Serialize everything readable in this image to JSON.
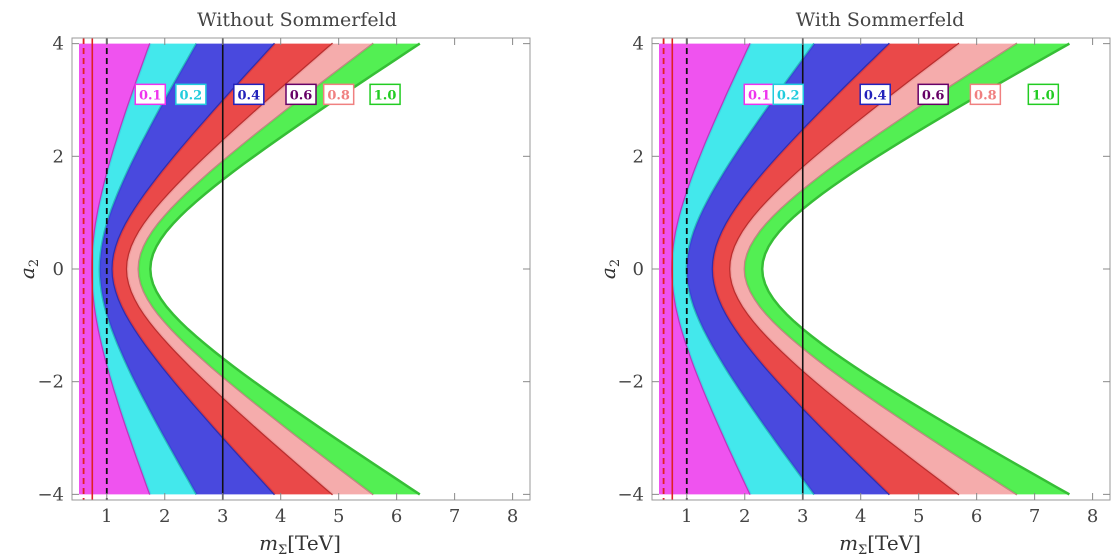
{
  "chart_data": [
    {
      "type": "area",
      "title": "Without Sommerfeld",
      "xlabel_main": "m",
      "xlabel_sub": "Σ",
      "xlabel_unit": "[TeV]",
      "ylabel_main": "a",
      "ylabel_sub": "2",
      "xlim": [
        0.4,
        8.3
      ],
      "ylim": [
        -4.1,
        4.1
      ],
      "xticks": [
        1,
        2,
        3,
        4,
        5,
        6,
        7,
        8
      ],
      "yticks": [
        4,
        2,
        0,
        -2,
        -4
      ],
      "ytick_labels": [
        "4",
        "2",
        "0",
        "−2",
        "−4"
      ],
      "grid": false,
      "bands": [
        {
          "label": "0.1",
          "color": "#ee44ee",
          "left_edge": [
            [
              0.52,
              4
            ],
            [
              0.52,
              -4
            ]
          ],
          "right_edge": [
            [
              1.75,
              4
            ],
            [
              0.75,
              0
            ],
            [
              1.75,
              -4
            ]
          ]
        },
        {
          "label": "0.2",
          "color": "#33e6ea",
          "left_edge": [
            [
              1.75,
              4
            ],
            [
              0.75,
              0
            ],
            [
              1.75,
              -4
            ]
          ],
          "right_edge": [
            [
              2.55,
              4
            ],
            [
              0.88,
              0
            ],
            [
              2.55,
              -4
            ]
          ]
        },
        {
          "label": "0.4",
          "color": "#3a3adb",
          "left_edge": [
            [
              2.55,
              4
            ],
            [
              0.88,
              0
            ],
            [
              2.55,
              -4
            ]
          ],
          "right_edge": [
            [
              3.9,
              4
            ],
            [
              1.1,
              0
            ],
            [
              3.9,
              -4
            ]
          ]
        },
        {
          "label": "0.6",
          "color": "#e83a3a",
          "left_edge": [
            [
              3.9,
              4
            ],
            [
              1.1,
              0
            ],
            [
              3.9,
              -4
            ]
          ],
          "right_edge": [
            [
              4.9,
              4
            ],
            [
              1.35,
              0
            ],
            [
              4.9,
              -4
            ]
          ]
        },
        {
          "label": "0.8",
          "color": "#f4a5a5",
          "left_edge": [
            [
              4.9,
              4
            ],
            [
              1.35,
              0
            ],
            [
              4.9,
              -4
            ]
          ],
          "right_edge": [
            [
              5.6,
              4
            ],
            [
              1.55,
              0
            ],
            [
              5.6,
              -4
            ]
          ]
        },
        {
          "label": "1.0",
          "color": "#44ee44",
          "left_edge": [
            [
              5.6,
              4
            ],
            [
              1.55,
              0
            ],
            [
              5.6,
              -4
            ]
          ],
          "right_edge": [
            [
              6.4,
              4
            ],
            [
              1.75,
              0
            ],
            [
              6.4,
              -4
            ]
          ]
        }
      ],
      "band_labels": [
        {
          "text": "0.1",
          "x": 1.75,
          "y": 3.1,
          "color": "#ee33ee"
        },
        {
          "text": "0.2",
          "x": 2.45,
          "y": 3.1,
          "color": "#22ccdd"
        },
        {
          "text": "0.4",
          "x": 3.45,
          "y": 3.1,
          "color": "#2222bb"
        },
        {
          "text": "0.6",
          "x": 4.35,
          "y": 3.1,
          "color": "#660066"
        },
        {
          "text": "0.8",
          "x": 5.0,
          "y": 3.1,
          "color": "#f08080"
        },
        {
          "text": "1.0",
          "x": 5.8,
          "y": 3.1,
          "color": "#22cc22"
        }
      ],
      "vertical_lines": [
        {
          "x": 0.6,
          "color": "#dd2222",
          "style": "dashed"
        },
        {
          "x": 0.75,
          "color": "#dd2222",
          "style": "solid"
        },
        {
          "x": 1.0,
          "color": "#111111",
          "style": "dashed"
        },
        {
          "x": 3.0,
          "color": "#111111",
          "style": "solid"
        }
      ]
    },
    {
      "type": "area",
      "title": "With Sommerfeld",
      "xlabel_main": "m",
      "xlabel_sub": "Σ",
      "xlabel_unit": "[TeV]",
      "ylabel_main": "a",
      "ylabel_sub": "2",
      "xlim": [
        0.4,
        8.3
      ],
      "ylim": [
        -4.1,
        4.1
      ],
      "xticks": [
        1,
        2,
        3,
        4,
        5,
        6,
        7,
        8
      ],
      "yticks": [
        4,
        2,
        0,
        -2,
        -4
      ],
      "ytick_labels": [
        "4",
        "2",
        "0",
        "−2",
        "−4"
      ],
      "grid": false,
      "bands": [
        {
          "label": "0.1",
          "color": "#ee44ee",
          "left_edge": [
            [
              0.52,
              4
            ],
            [
              0.52,
              -4
            ]
          ],
          "right_edge": [
            [
              2.1,
              4
            ],
            [
              0.75,
              0
            ],
            [
              2.1,
              -4
            ]
          ]
        },
        {
          "label": "0.2",
          "color": "#33e6ea",
          "left_edge": [
            [
              2.1,
              4
            ],
            [
              0.75,
              0
            ],
            [
              2.1,
              -4
            ]
          ],
          "right_edge": [
            [
              3.2,
              4
            ],
            [
              1.0,
              0
            ],
            [
              3.2,
              -4
            ]
          ]
        },
        {
          "label": "0.4",
          "color": "#3a3adb",
          "left_edge": [
            [
              3.2,
              4
            ],
            [
              1.0,
              0
            ],
            [
              3.2,
              -4
            ]
          ],
          "right_edge": [
            [
              4.5,
              4
            ],
            [
              1.45,
              0
            ],
            [
              4.5,
              -4
            ]
          ]
        },
        {
          "label": "0.6",
          "color": "#e83a3a",
          "left_edge": [
            [
              4.5,
              4
            ],
            [
              1.45,
              0
            ],
            [
              4.5,
              -4
            ]
          ],
          "right_edge": [
            [
              5.7,
              4
            ],
            [
              1.75,
              0
            ],
            [
              5.7,
              -4
            ]
          ]
        },
        {
          "label": "0.8",
          "color": "#f4a5a5",
          "left_edge": [
            [
              5.7,
              4
            ],
            [
              1.75,
              0
            ],
            [
              5.7,
              -4
            ]
          ],
          "right_edge": [
            [
              6.7,
              4
            ],
            [
              2.0,
              0
            ],
            [
              6.7,
              -4
            ]
          ]
        },
        {
          "label": "1.0",
          "color": "#44ee44",
          "left_edge": [
            [
              6.7,
              4
            ],
            [
              2.0,
              0
            ],
            [
              6.7,
              -4
            ]
          ],
          "right_edge": [
            [
              7.6,
              4
            ],
            [
              2.3,
              0
            ],
            [
              7.6,
              -4
            ]
          ]
        }
      ],
      "band_labels": [
        {
          "text": "0.1",
          "x": 2.25,
          "y": 3.1,
          "color": "#ee33ee"
        },
        {
          "text": "0.2",
          "x": 2.75,
          "y": 3.1,
          "color": "#22ccdd"
        },
        {
          "text": "0.4",
          "x": 4.25,
          "y": 3.1,
          "color": "#2222bb"
        },
        {
          "text": "0.6",
          "x": 5.25,
          "y": 3.1,
          "color": "#660066"
        },
        {
          "text": "0.8",
          "x": 6.15,
          "y": 3.1,
          "color": "#f08080"
        },
        {
          "text": "1.0",
          "x": 7.15,
          "y": 3.1,
          "color": "#22cc22"
        }
      ],
      "vertical_lines": [
        {
          "x": 0.6,
          "color": "#dd2222",
          "style": "dashed"
        },
        {
          "x": 0.75,
          "color": "#dd2222",
          "style": "solid"
        },
        {
          "x": 1.0,
          "color": "#111111",
          "style": "dashed"
        },
        {
          "x": 3.0,
          "color": "#111111",
          "style": "solid"
        }
      ]
    }
  ]
}
